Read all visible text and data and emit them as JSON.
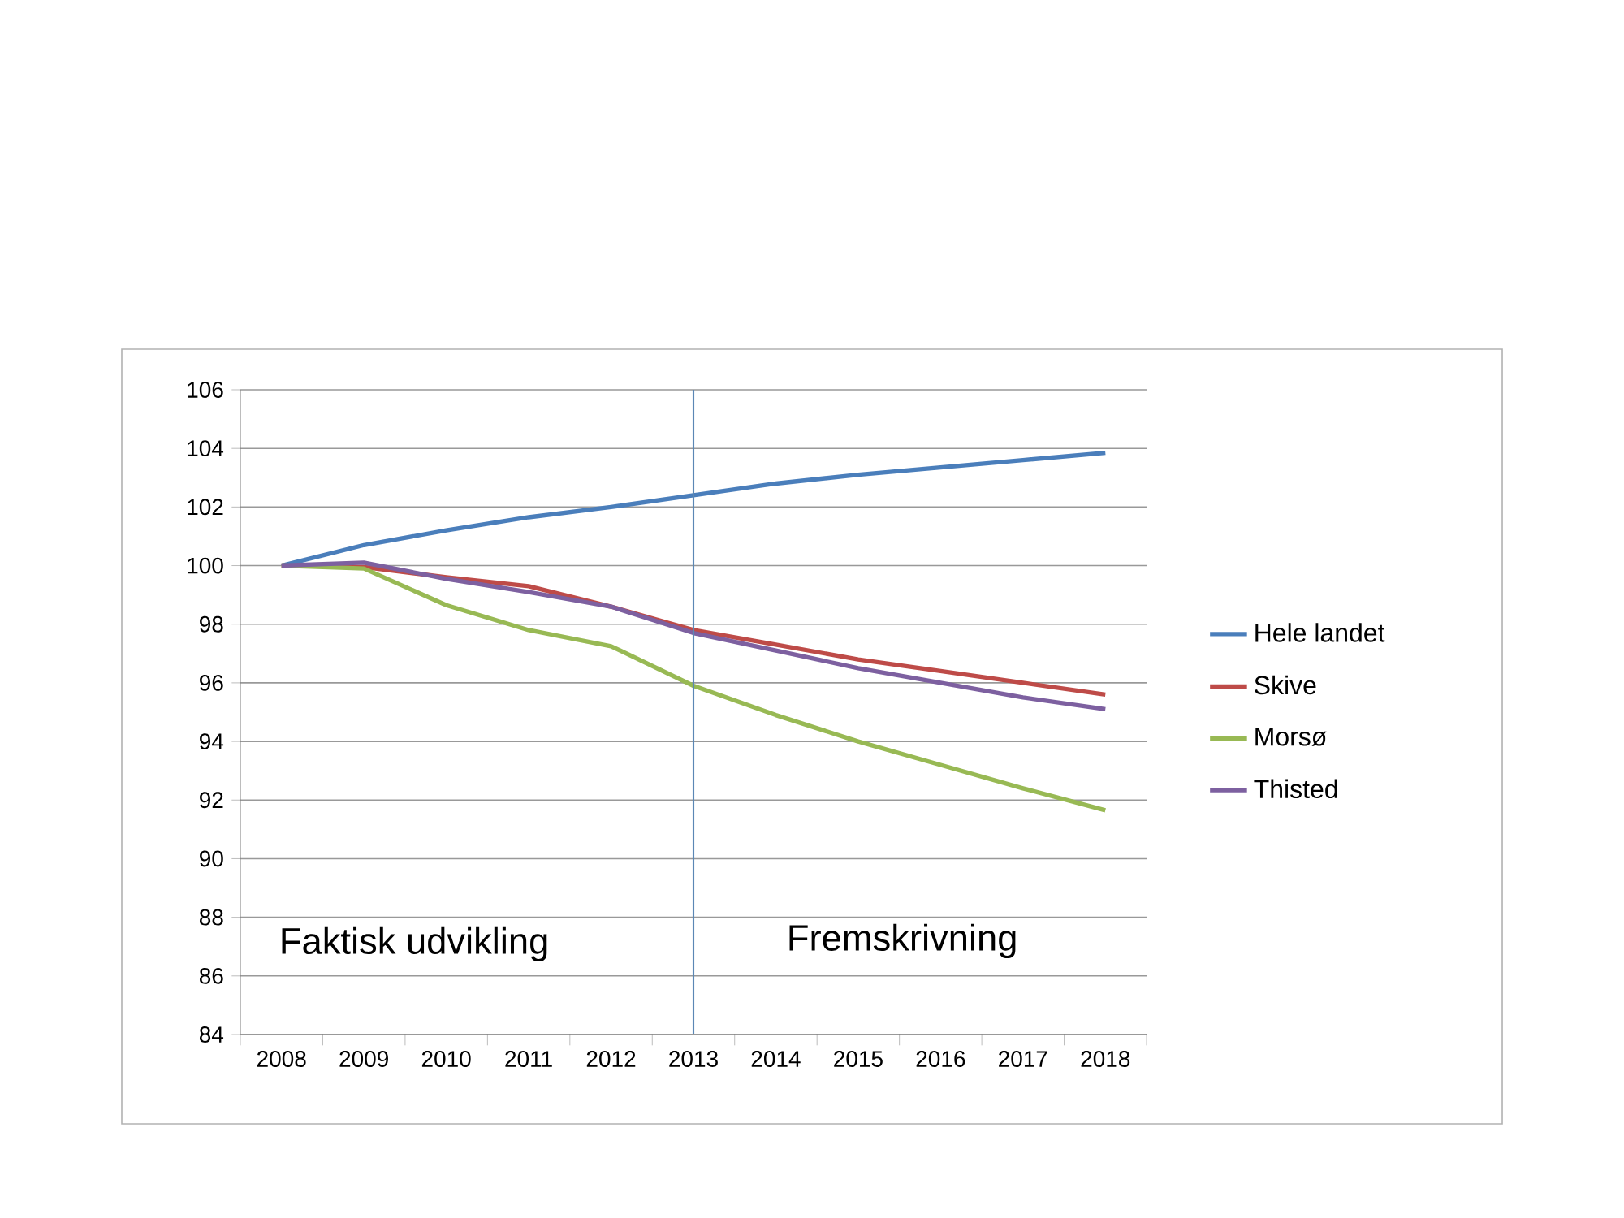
{
  "chart_data": {
    "type": "line",
    "categories": [
      "2008",
      "2009",
      "2010",
      "2011",
      "2012",
      "2013",
      "2014",
      "2015",
      "2016",
      "2017",
      "2018"
    ],
    "series": [
      {
        "name": "Hele landet",
        "color": "#4a7ebb",
        "values": [
          100,
          100.7,
          101.2,
          101.65,
          102.0,
          102.4,
          102.8,
          103.1,
          103.35,
          103.6,
          103.85
        ]
      },
      {
        "name": "Skive",
        "color": "#be4b48",
        "values": [
          100,
          99.95,
          99.6,
          99.3,
          98.6,
          97.8,
          97.3,
          96.8,
          96.4,
          96.0,
          95.6
        ]
      },
      {
        "name": "Morsø",
        "color": "#98b954",
        "values": [
          100,
          99.9,
          98.65,
          97.8,
          97.25,
          95.9,
          94.9,
          94.0,
          93.2,
          92.4,
          91.65
        ]
      },
      {
        "name": "Thisted",
        "color": "#7d60a0",
        "values": [
          100,
          100.1,
          99.55,
          99.1,
          98.6,
          97.7,
          97.1,
          96.5,
          96.0,
          95.5,
          95.1
        ]
      }
    ],
    "ylim": [
      84,
      106
    ],
    "yticks": [
      84,
      86,
      88,
      90,
      92,
      94,
      96,
      98,
      100,
      102,
      104,
      106
    ],
    "grid": "y",
    "legend": "right",
    "marker": "none",
    "line_style": "solid",
    "ref_lines": [
      {
        "axis": "x",
        "value": "2013",
        "color": "#5b87b5"
      }
    ],
    "annotations": [
      "Faktisk udvikling",
      "Fremskrivning"
    ]
  }
}
